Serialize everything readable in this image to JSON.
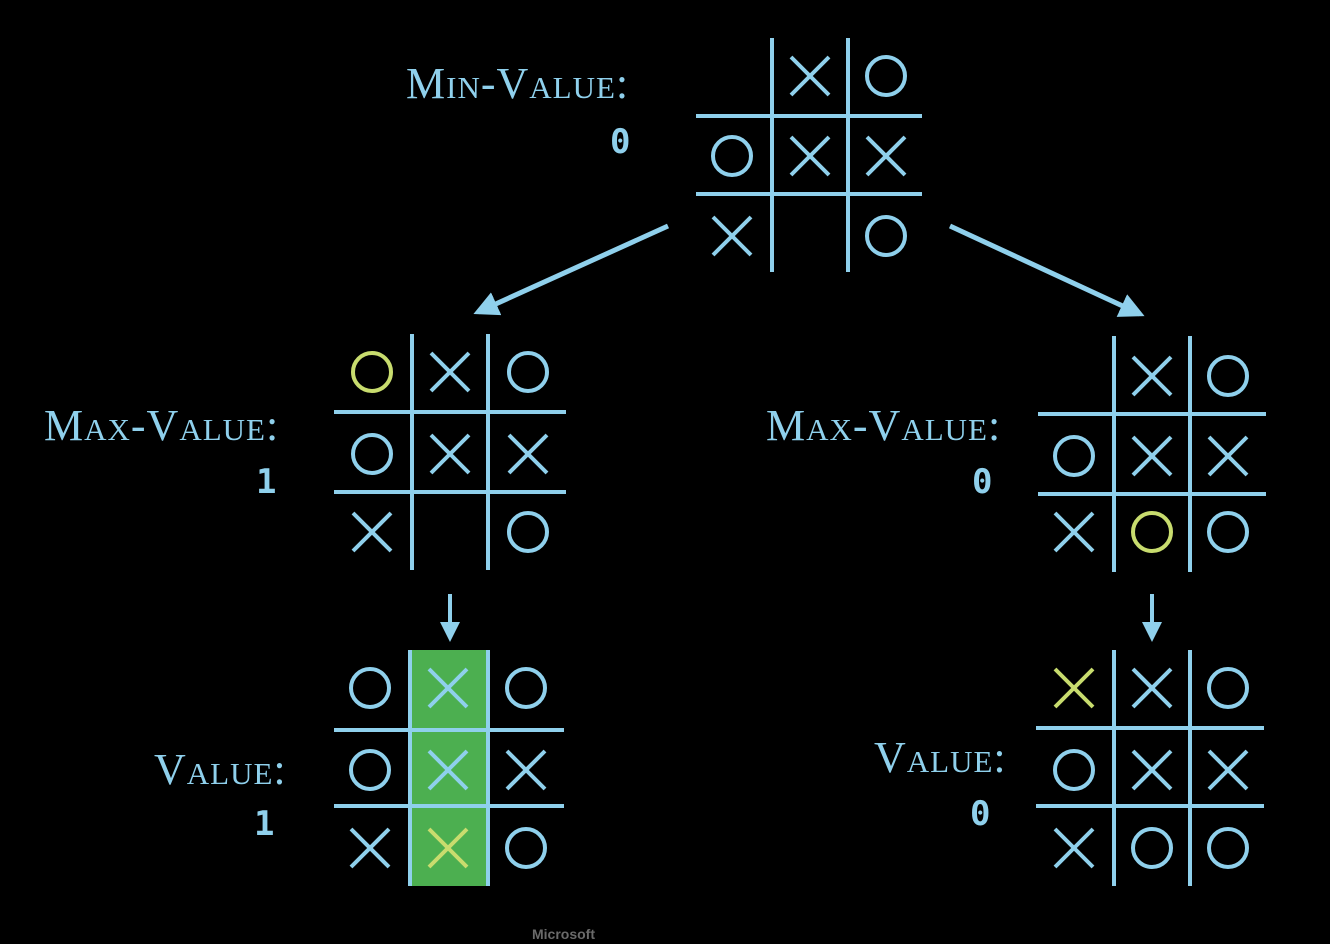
{
  "colors": {
    "background": "#000000",
    "line": "#8fd0ec",
    "highlight_mark": "#c8dc6e",
    "win_column": "#4caf50"
  },
  "labels": {
    "min_value": "Min-Value:",
    "max_value": "Max-Value:",
    "value": "Value:"
  },
  "nodes": [
    {
      "id": "root",
      "label_key": "min_value",
      "value": "0",
      "board": [
        "",
        "X",
        "O",
        "O",
        "X",
        "X",
        "X",
        "",
        "O"
      ],
      "highlight": []
    },
    {
      "id": "left-child",
      "label_key": "max_value",
      "value": "1",
      "board": [
        "O",
        "X",
        "O",
        "O",
        "X",
        "X",
        "X",
        "",
        "O"
      ],
      "highlight": [
        0
      ]
    },
    {
      "id": "right-child",
      "label_key": "max_value",
      "value": "0",
      "board": [
        "",
        "X",
        "O",
        "O",
        "X",
        "X",
        "X",
        "O",
        "O"
      ],
      "highlight": [
        7
      ]
    },
    {
      "id": "left-leaf",
      "label_key": "value",
      "value": "1",
      "board": [
        "O",
        "X",
        "O",
        "O",
        "X",
        "X",
        "X",
        "X",
        "O"
      ],
      "highlight": [
        7
      ],
      "win_column": 1
    },
    {
      "id": "right-leaf",
      "label_key": "value",
      "value": "0",
      "board": [
        "X",
        "X",
        "O",
        "O",
        "X",
        "X",
        "X",
        "O",
        "O"
      ],
      "highlight": [
        0
      ]
    }
  ],
  "watermark": "Microsoft"
}
